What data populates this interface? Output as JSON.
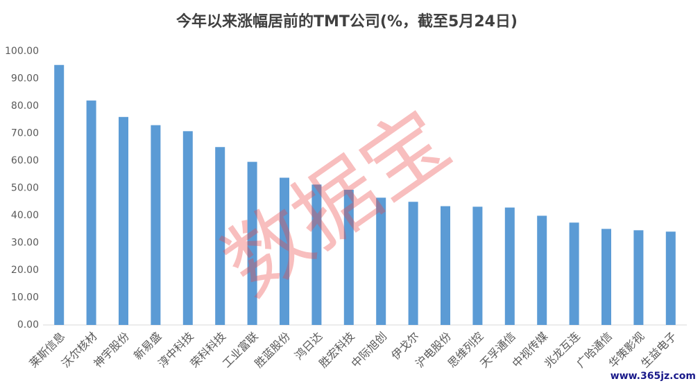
{
  "chart_data": {
    "type": "bar",
    "title": "今年以来涨幅居前的TMT公司(%，截至5月24日)",
    "categories": [
      "莱斯信息",
      "沃尔核材",
      "神宇股份",
      "新易盛",
      "淳中科技",
      "荣科科技",
      "工业富联",
      "胜蓝股份",
      "鸿日达",
      "胜宏科技",
      "中际旭创",
      "伊戈尔",
      "沪电股份",
      "思维列控",
      "天孚通信",
      "中视传媒",
      "兆龙互连",
      "广哈通信",
      "华策影视",
      "生益电子"
    ],
    "values": [
      95,
      82,
      76,
      73,
      70.8,
      65,
      59.6,
      53.8,
      51.3,
      49.4,
      46.5,
      45,
      43.4,
      43.2,
      42.9,
      39.9,
      37.4,
      35.1,
      34.6,
      34.1
    ],
    "color": "#5b9bd5",
    "ylim": [
      0,
      100
    ],
    "yticks": [
      {
        "value": 0,
        "label": "0.00"
      },
      {
        "value": 10,
        "label": "10.00"
      },
      {
        "value": 20,
        "label": "20.00"
      },
      {
        "value": 30,
        "label": "30.00"
      },
      {
        "value": 40,
        "label": "40.00"
      },
      {
        "value": 50,
        "label": "50.00"
      },
      {
        "value": 60,
        "label": "60.00"
      },
      {
        "value": 70,
        "label": "70.00"
      },
      {
        "value": 80,
        "label": "80.00"
      },
      {
        "value": 90,
        "label": "90.00"
      },
      {
        "value": 100,
        "label": "100.00"
      }
    ],
    "grid": false,
    "watermark": "数据宝",
    "source_mark": "www.365jz.com"
  }
}
